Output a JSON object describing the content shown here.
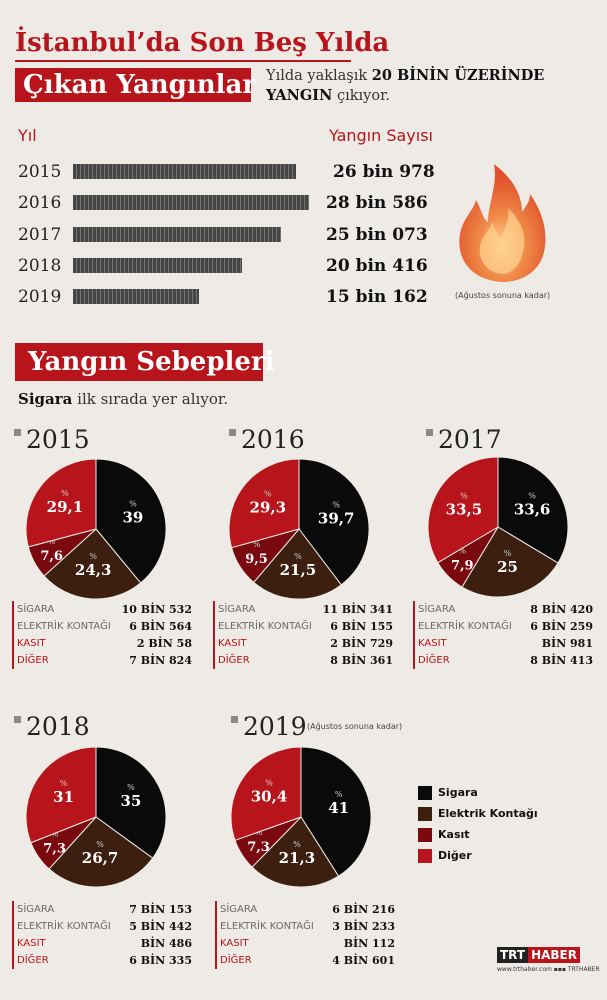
{
  "header": {
    "title_line1": "İstanbul’da Son Beş Yılda",
    "title_line2": "Çıkan Yangınlar",
    "subtitle_pre": "Yılda yaklaşık ",
    "subtitle_bold": "20 BİNİN ÜZERİNDE YANGIN",
    "subtitle_post": " çıkıyor."
  },
  "yearly": {
    "col_year": "Yıl",
    "col_count": "Yangın Sayısı",
    "note": "(Ağustos sonuna kadar)",
    "rows": [
      {
        "year": "2015",
        "count": "26 bin 978"
      },
      {
        "year": "2016",
        "count": "28 bin 586"
      },
      {
        "year": "2017",
        "count": "25 bin 073"
      },
      {
        "year": "2018",
        "count": "20 bin 416"
      },
      {
        "year": "2019",
        "count": "15 bin 162"
      }
    ]
  },
  "causes": {
    "title": "Yangın Sebepleri",
    "sub_bold": "Sigara",
    "sub_rest": " ilk sırada yer alıyor.",
    "colors": [
      "#0a0a0a",
      "#3d1f10",
      "#7a0a10",
      "#b7151b"
    ],
    "pct_sign": "%",
    "years": [
      {
        "year": "2015",
        "note": "",
        "pcts": [
          "39",
          "24,3",
          "7,6",
          "29,1"
        ],
        "stats": [
          {
            "label": "SİGARA",
            "value": "10 BİN 532"
          },
          {
            "label": "ELEKTRİK KONTAĞI",
            "value": "6 BİN 564"
          },
          {
            "label": "KASIT",
            "value": "2 BİN 58"
          },
          {
            "label": "DİĞER",
            "value": "7 BİN 824"
          }
        ]
      },
      {
        "year": "2016",
        "note": "",
        "pcts": [
          "39,7",
          "21,5",
          "9,5",
          "29,3"
        ],
        "stats": [
          {
            "label": "SİGARA",
            "value": "11 BİN 341"
          },
          {
            "label": "ELEKTRİK KONTAĞI",
            "value": "6 BİN 155"
          },
          {
            "label": "KASIT",
            "value": "2 BİN 729"
          },
          {
            "label": "DİĞER",
            "value": "8 BİN 361"
          }
        ]
      },
      {
        "year": "2017",
        "note": "",
        "pcts": [
          "33,6",
          "25",
          "7,9",
          "33,5"
        ],
        "stats": [
          {
            "label": "SİGARA",
            "value": "8 BİN 420"
          },
          {
            "label": "ELEKTRİK KONTAĞI",
            "value": "6 BİN 259"
          },
          {
            "label": "KASIT",
            "value": "BİN 981"
          },
          {
            "label": "DİĞER",
            "value": "8 BİN 413"
          }
        ]
      },
      {
        "year": "2018",
        "note": "",
        "pcts": [
          "35",
          "26,7",
          "7,3",
          "31"
        ],
        "stats": [
          {
            "label": "SİGARA",
            "value": "7 BİN 153"
          },
          {
            "label": "ELEKTRİK KONTAĞI",
            "value": "5 BİN 442"
          },
          {
            "label": "KASIT",
            "value": "BİN 486"
          },
          {
            "label": "DİĞER",
            "value": "6 BİN 335"
          }
        ]
      },
      {
        "year": "2019",
        "note": "(Ağustos sonuna kadar)",
        "pcts": [
          "41",
          "21,3",
          "7,3",
          "30,4"
        ],
        "stats": [
          {
            "label": "SİGARA",
            "value": "6 BİN 216"
          },
          {
            "label": "ELEKTRİK KONTAĞI",
            "value": "3 BİN 233"
          },
          {
            "label": "KASIT",
            "value": "BİN 112"
          },
          {
            "label": "DİĞER",
            "value": "4 BİN 601"
          }
        ]
      }
    ],
    "legend": [
      "Sigara",
      "Elektrik Kontağı",
      "Kasıt",
      "Diğer"
    ]
  },
  "footer": {
    "logo_a": "TRT",
    "logo_b": "HABER",
    "site": "www.trthaber.com",
    "social": "TRTHABER"
  }
}
